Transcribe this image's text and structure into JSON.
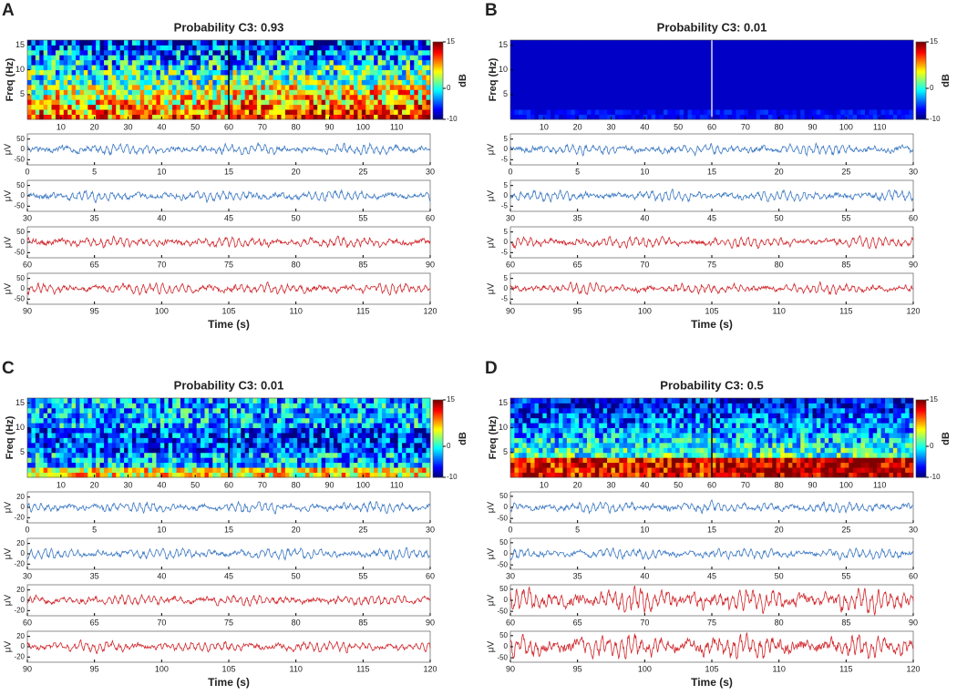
{
  "panels": [
    {
      "label": "A",
      "title": "Probability C3: 0.93",
      "xlabel": "Time (s)",
      "spectrogram": {
        "ylabel": "Freq (Hz)",
        "ylim": [
          0,
          16
        ],
        "yticks": [
          5,
          10,
          15
        ],
        "xlim": [
          0,
          120
        ],
        "xticks": [
          10,
          20,
          30,
          40,
          50,
          60,
          70,
          80,
          90,
          100,
          110
        ],
        "colorbar": {
          "label": "dB",
          "lim": [
            -10,
            15
          ],
          "ticks": [
            15,
            0,
            -10
          ]
        }
      },
      "traces": [
        {
          "ylabel": "μV",
          "color": "#3b78c2",
          "ylim": [
            -75,
            75
          ],
          "yticks": [
            50,
            0,
            -50
          ],
          "xlim": [
            0,
            30
          ],
          "xticks": [
            0,
            5,
            10,
            15,
            20,
            25,
            30
          ]
        },
        {
          "ylabel": "μV",
          "color": "#3b78c2",
          "ylim": [
            -75,
            75
          ],
          "yticks": [
            50,
            0,
            -50
          ],
          "xlim": [
            30,
            60
          ],
          "xticks": [
            30,
            35,
            40,
            45,
            50,
            55,
            60
          ]
        },
        {
          "ylabel": "μV",
          "color": "#d0262b",
          "ylim": [
            -75,
            75
          ],
          "yticks": [
            50,
            0,
            -50
          ],
          "xlim": [
            60,
            90
          ],
          "xticks": [
            60,
            65,
            70,
            75,
            80,
            85,
            90
          ]
        },
        {
          "ylabel": "μV",
          "color": "#d0262b",
          "ylim": [
            -75,
            75
          ],
          "yticks": [
            50,
            0,
            -50
          ],
          "xlim": [
            90,
            120
          ],
          "xticks": [
            90,
            95,
            100,
            105,
            110,
            115,
            120
          ]
        }
      ]
    },
    {
      "label": "B",
      "title": "Probability C3: 0.01",
      "xlabel": "Time (s)",
      "spectrogram": {
        "ylabel": "Freq (Hz)",
        "ylim": [
          0,
          16
        ],
        "yticks": [
          5,
          10,
          15
        ],
        "xlim": [
          0,
          120
        ],
        "xticks": [
          10,
          20,
          30,
          40,
          50,
          60,
          70,
          80,
          90,
          100,
          110
        ],
        "colorbar": {
          "label": "dB",
          "lim": [
            -10,
            15
          ],
          "ticks": [
            15,
            0,
            -10
          ]
        }
      },
      "traces": [
        {
          "ylabel": "μV",
          "color": "#3b78c2",
          "ylim": [
            -7.5,
            7.5
          ],
          "yticks": [
            5,
            0,
            -5
          ],
          "xlim": [
            0,
            30
          ],
          "xticks": [
            0,
            5,
            10,
            15,
            20,
            25,
            30
          ]
        },
        {
          "ylabel": "μV",
          "color": "#3b78c2",
          "ylim": [
            -7.5,
            7.5
          ],
          "yticks": [
            5,
            0,
            -5
          ],
          "xlim": [
            30,
            60
          ],
          "xticks": [
            30,
            35,
            40,
            45,
            50,
            55,
            60
          ]
        },
        {
          "ylabel": "μV",
          "color": "#d0262b",
          "ylim": [
            -7.5,
            7.5
          ],
          "yticks": [
            5,
            0,
            -5
          ],
          "xlim": [
            60,
            90
          ],
          "xticks": [
            60,
            65,
            70,
            75,
            80,
            85,
            90
          ]
        },
        {
          "ylabel": "μV",
          "color": "#d0262b",
          "ylim": [
            -7.5,
            7.5
          ],
          "yticks": [
            5,
            0,
            -5
          ],
          "xlim": [
            90,
            120
          ],
          "xticks": [
            90,
            95,
            100,
            105,
            110,
            115,
            120
          ]
        }
      ]
    },
    {
      "label": "C",
      "title": "Probability C3: 0.01",
      "xlabel": "Time (s)",
      "spectrogram": {
        "ylabel": "Freq (Hz)",
        "ylim": [
          0,
          16
        ],
        "yticks": [
          5,
          10,
          15
        ],
        "xlim": [
          0,
          120
        ],
        "xticks": [
          10,
          20,
          30,
          40,
          50,
          60,
          70,
          80,
          90,
          100,
          110
        ],
        "colorbar": {
          "label": "dB",
          "lim": [
            -10,
            15
          ],
          "ticks": [
            15,
            0,
            -10
          ]
        }
      },
      "traces": [
        {
          "ylabel": "μV",
          "color": "#3b78c2",
          "ylim": [
            -30,
            30
          ],
          "yticks": [
            20,
            0,
            -20
          ],
          "xlim": [
            0,
            30
          ],
          "xticks": [
            0,
            5,
            10,
            15,
            20,
            25,
            30
          ]
        },
        {
          "ylabel": "μV",
          "color": "#3b78c2",
          "ylim": [
            -30,
            30
          ],
          "yticks": [
            20,
            0,
            -20
          ],
          "xlim": [
            30,
            60
          ],
          "xticks": [
            30,
            35,
            40,
            45,
            50,
            55,
            60
          ]
        },
        {
          "ylabel": "μV",
          "color": "#d0262b",
          "ylim": [
            -30,
            30
          ],
          "yticks": [
            20,
            0,
            -20
          ],
          "xlim": [
            60,
            90
          ],
          "xticks": [
            60,
            65,
            70,
            75,
            80,
            85,
            90
          ]
        },
        {
          "ylabel": "μV",
          "color": "#d0262b",
          "ylim": [
            -30,
            30
          ],
          "yticks": [
            20,
            0,
            -20
          ],
          "xlim": [
            90,
            120
          ],
          "xticks": [
            90,
            95,
            100,
            105,
            110,
            115,
            120
          ]
        }
      ]
    },
    {
      "label": "D",
      "title": "Probability C3: 0.5",
      "xlabel": "Time (s)",
      "spectrogram": {
        "ylabel": "Freq (Hz)",
        "ylim": [
          0,
          16
        ],
        "yticks": [
          5,
          10,
          15
        ],
        "xlim": [
          0,
          120
        ],
        "xticks": [
          10,
          20,
          30,
          40,
          50,
          60,
          70,
          80,
          90,
          100,
          110
        ],
        "colorbar": {
          "label": "dB",
          "lim": [
            -10,
            15
          ],
          "ticks": [
            15,
            0,
            -10
          ]
        }
      },
      "traces": [
        {
          "ylabel": "μV",
          "color": "#3b78c2",
          "ylim": [
            -70,
            70
          ],
          "yticks": [
            50,
            0,
            -50
          ],
          "xlim": [
            0,
            30
          ],
          "xticks": [
            0,
            5,
            10,
            15,
            20,
            25,
            30
          ]
        },
        {
          "ylabel": "μV",
          "color": "#3b78c2",
          "ylim": [
            -70,
            70
          ],
          "yticks": [
            50,
            0,
            -50
          ],
          "xlim": [
            30,
            60
          ],
          "xticks": [
            30,
            35,
            40,
            45,
            50,
            55,
            60
          ]
        },
        {
          "ylabel": "μV",
          "color": "#d0262b",
          "ylim": [
            -70,
            70
          ],
          "yticks": [
            50,
            0,
            -50
          ],
          "xlim": [
            60,
            90
          ],
          "xticks": [
            60,
            65,
            70,
            75,
            80,
            85,
            90
          ]
        },
        {
          "ylabel": "μV",
          "color": "#d0262b",
          "ylim": [
            -70,
            70
          ],
          "yticks": [
            50,
            0,
            -50
          ],
          "xlim": [
            90,
            120
          ],
          "xticks": [
            90,
            95,
            100,
            105,
            110,
            115,
            120
          ]
        }
      ]
    }
  ]
}
